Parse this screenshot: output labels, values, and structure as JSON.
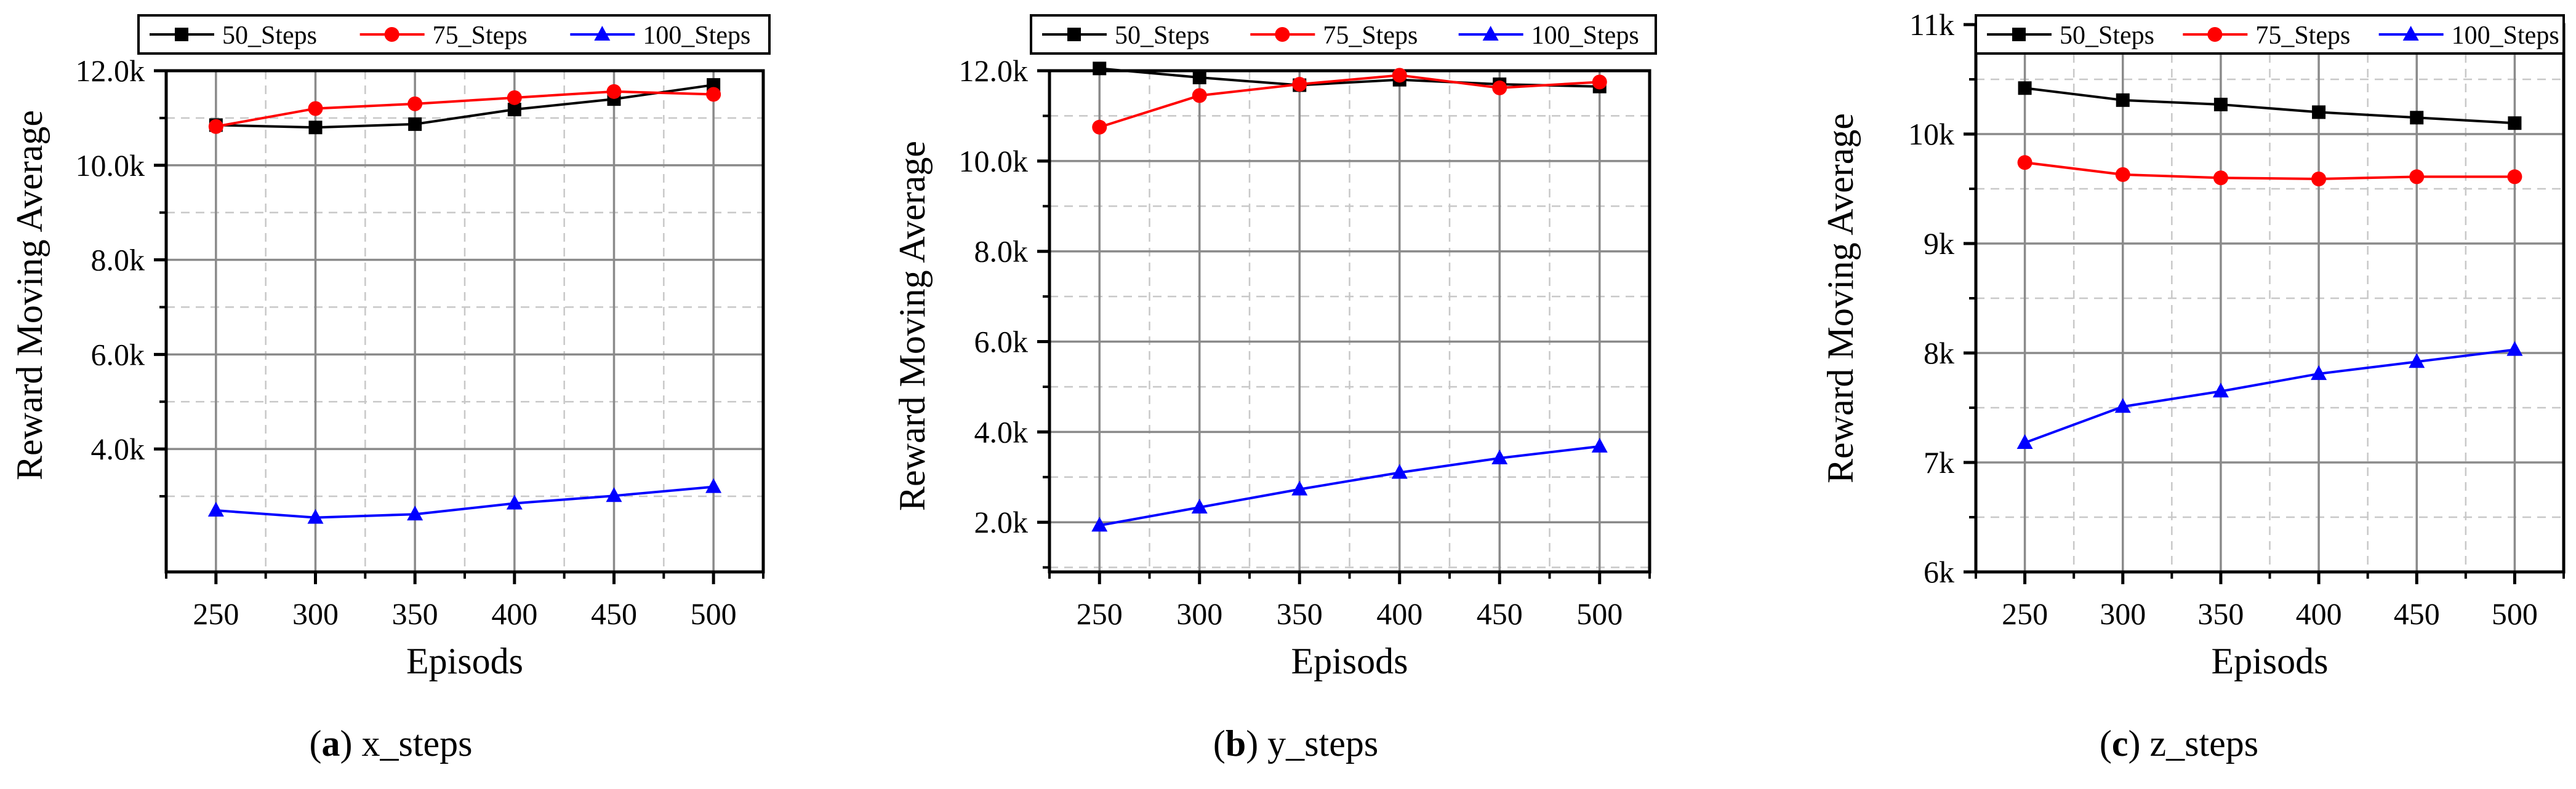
{
  "chart_data": [
    {
      "type": "line",
      "ylabel": "Reward Moving Average",
      "xlabel": "Episods",
      "x": [
        250,
        300,
        350,
        400,
        450,
        500
      ],
      "xticks": [
        "250",
        "300",
        "350",
        "400",
        "450",
        "500"
      ],
      "xlim": [
        225,
        525
      ],
      "ylim": [
        1400,
        12000
      ],
      "yticks": [
        4000,
        6000,
        8000,
        10000,
        12000
      ],
      "ytick_labels": [
        "4.0k",
        "6.0k",
        "8.0k",
        "10.0k",
        "12.0k"
      ],
      "yminor": [
        3000,
        5000,
        7000,
        9000,
        11000
      ],
      "legend": "top",
      "series": [
        {
          "name": "50_Steps",
          "color": "#000000",
          "marker": "square",
          "values": [
            10850,
            10800,
            10870,
            11180,
            11400,
            11700
          ]
        },
        {
          "name": "75_Steps",
          "color": "#ff0000",
          "marker": "circle",
          "values": [
            10820,
            11200,
            11300,
            11430,
            11560,
            11500
          ]
        },
        {
          "name": "100_Steps",
          "color": "#0000ff",
          "marker": "triangle",
          "values": [
            2700,
            2550,
            2620,
            2850,
            3010,
            3200
          ]
        }
      ],
      "caption_letter": "(a)",
      "caption_text": "x_steps"
    },
    {
      "type": "line",
      "ylabel": "Reward Moving Average",
      "xlabel": "Episods",
      "x": [
        250,
        300,
        350,
        400,
        450,
        500
      ],
      "xticks": [
        "250",
        "300",
        "350",
        "400",
        "450",
        "500"
      ],
      "xlim": [
        225,
        525
      ],
      "ylim": [
        900,
        12000
      ],
      "yticks": [
        2000,
        4000,
        6000,
        8000,
        10000,
        12000
      ],
      "ytick_labels": [
        "2.0k",
        "4.0k",
        "6.0k",
        "8.0k",
        "10.0k",
        "12.0k"
      ],
      "yminor": [
        1000,
        3000,
        5000,
        7000,
        9000,
        11000
      ],
      "legend": "top",
      "series": [
        {
          "name": "50_Steps",
          "color": "#000000",
          "marker": "square",
          "values": [
            12050,
            11850,
            11680,
            11800,
            11700,
            11650
          ]
        },
        {
          "name": "75_Steps",
          "color": "#ff0000",
          "marker": "circle",
          "values": [
            10750,
            11450,
            11700,
            11900,
            11620,
            11750
          ]
        },
        {
          "name": "100_Steps",
          "color": "#0000ff",
          "marker": "triangle",
          "values": [
            1930,
            2330,
            2730,
            3100,
            3420,
            3680
          ]
        }
      ],
      "caption_letter": "(b)",
      "caption_text": "y_steps"
    },
    {
      "type": "line",
      "ylabel": "Reward Moving Average",
      "xlabel": "Episods",
      "x": [
        250,
        300,
        350,
        400,
        450,
        500
      ],
      "xticks": [
        "250",
        "300",
        "350",
        "400",
        "450",
        "500"
      ],
      "xlim": [
        225,
        525
      ],
      "ylim": [
        6000,
        11000
      ],
      "yticks": [
        6000,
        7000,
        8000,
        9000,
        10000,
        11000
      ],
      "ytick_labels": [
        "6k",
        "7k",
        "8k",
        "9k",
        "10k",
        "11k"
      ],
      "yminor": [
        6500,
        7500,
        8500,
        9500,
        10500
      ],
      "legend": "top",
      "series": [
        {
          "name": "50_Steps",
          "color": "#000000",
          "marker": "square",
          "values": [
            10420,
            10310,
            10270,
            10200,
            10150,
            10100
          ]
        },
        {
          "name": "75_Steps",
          "color": "#ff0000",
          "marker": "circle",
          "values": [
            9740,
            9630,
            9600,
            9590,
            9610,
            9610
          ]
        },
        {
          "name": "100_Steps",
          "color": "#0000ff",
          "marker": "triangle",
          "values": [
            7180,
            7510,
            7650,
            7810,
            7920,
            8030
          ]
        }
      ],
      "caption_letter": "(c)",
      "caption_text": "z_steps"
    }
  ]
}
